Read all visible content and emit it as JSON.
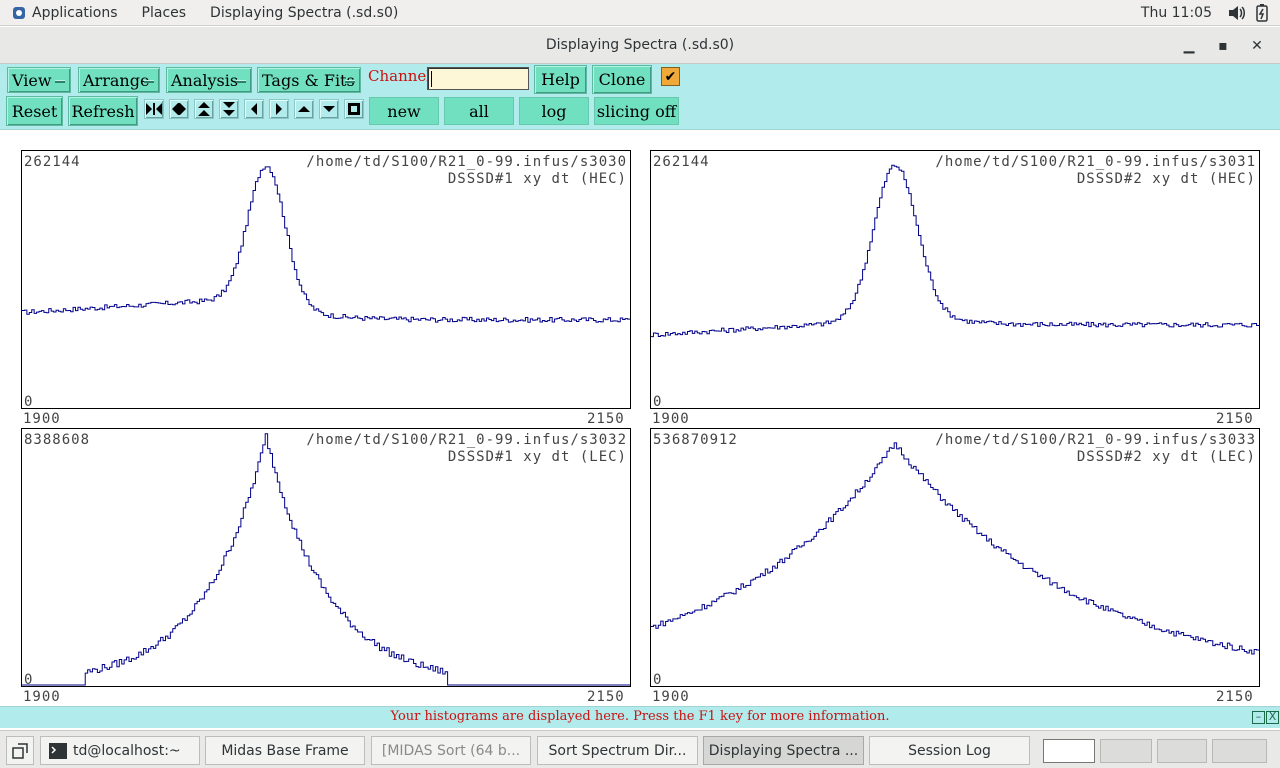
{
  "top_panel": {
    "applications": "Applications",
    "places": "Places",
    "active_window": "Displaying Spectra (.sd.s0)",
    "clock": "Thu 11:05"
  },
  "window": {
    "title": "Displaying Spectra (.sd.s0)",
    "minimize": "▁",
    "maximize": "▪",
    "close": "✕"
  },
  "toolbar": {
    "menus": [
      "View",
      "Arrange",
      "Analysis",
      "Tags & Fits"
    ],
    "channel_label": "Channel:",
    "channel_value": "",
    "help": "Help",
    "clone": "Clone",
    "check": "✔",
    "reset": "Reset",
    "refresh": "Refresh",
    "nav_icons": [
      "expand-horizontal-icon",
      "compress-horizontal-icon",
      "expand-vertical-icon",
      "compress-vertical-icon",
      "left-arrow-icon",
      "right-arrow-icon",
      "up-arrow-icon",
      "down-arrow-icon",
      "stop-square-icon"
    ],
    "new": "new",
    "all": "all",
    "log": "log",
    "slicing": "slicing off"
  },
  "panels": [
    {
      "max": "262144",
      "path": "/home/td/S100/R21_0-99.infus/s3030",
      "desc": "DSSSD#1 xy dt (HEC)",
      "zero": "0",
      "xmin": "1900",
      "xmax": "2150",
      "shape": "hec",
      "peak": 0.4,
      "width": 0.03,
      "base_left": 0.38,
      "base_right": 0.35
    },
    {
      "max": "262144",
      "path": "/home/td/S100/R21_0-99.infus/s3031",
      "desc": "DSSSD#2 xy dt (HEC)",
      "zero": "0",
      "xmin": "1900",
      "xmax": "2150",
      "shape": "hec",
      "peak": 0.4,
      "width": 0.035,
      "base_left": 0.29,
      "base_right": 0.33
    },
    {
      "max": "8388608",
      "path": "/home/td/S100/R21_0-99.infus/s3032",
      "desc": "DSSSD#1 xy dt (LEC)",
      "zero": "0",
      "xmin": "1900",
      "xmax": "2150",
      "shape": "lec1",
      "peak": 0.4,
      "width": 0.1,
      "base_left": 0,
      "base_right": 0
    },
    {
      "max": "536870912",
      "path": "/home/td/S100/R21_0-99.infus/s3033",
      "desc": "DSSSD#2 xy dt (LEC)",
      "zero": "0",
      "xmin": "1900",
      "xmax": "2150",
      "shape": "lec2",
      "peak": 0.4,
      "width": 0.3,
      "base_left": 0.15,
      "base_right": 0.04
    }
  ],
  "status": {
    "message": "Your histograms are displayed here. Press the F1 key for more information.",
    "minimize": "–",
    "close": "X"
  },
  "taskbar": {
    "tasks": [
      "td@localhost:~",
      "Midas Base Frame",
      "[MIDAS Sort (64 b...",
      "Sort Spectrum Dir...",
      "Displaying Spectra ...",
      "Session Log"
    ]
  },
  "colors": {
    "toolbar_bg": "#b2ebeb",
    "button_bg": "#70e0c0",
    "histogram_line": "#00008b",
    "status_text": "#cc1111"
  }
}
